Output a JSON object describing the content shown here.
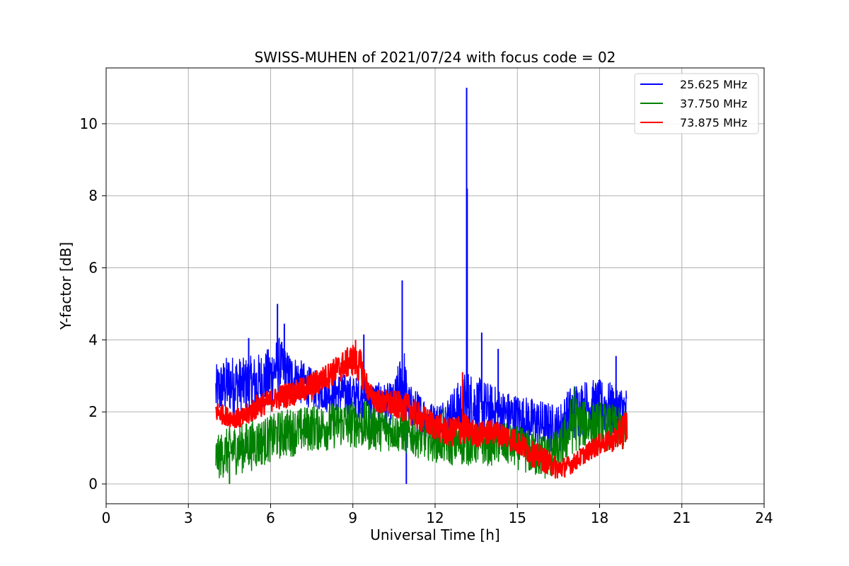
{
  "chart_data": {
    "type": "line",
    "title": "SWISS-MUHEN of 2021/07/24 with focus code = 02",
    "xlabel": "Universal Time [h]",
    "ylabel": "Y-factor [dB]",
    "xlim": [
      0,
      24
    ],
    "ylim": [
      -0.55,
      11.55
    ],
    "xticks": [
      0,
      3,
      6,
      9,
      12,
      15,
      18,
      21,
      24
    ],
    "yticks": [
      0,
      2,
      4,
      6,
      8,
      10
    ],
    "grid": true,
    "legend_position": "top-right",
    "series": [
      {
        "name": "25.625 MHz",
        "color": "#0000ff",
        "x": [
          4.0,
          4.5,
          5.0,
          5.5,
          6.0,
          6.3,
          6.6,
          7.0,
          7.5,
          8.0,
          8.5,
          9.0,
          9.5,
          10.0,
          10.5,
          10.85,
          11.0,
          11.5,
          12.0,
          12.5,
          13.0,
          13.15,
          13.5,
          14.0,
          14.5,
          15.0,
          15.5,
          16.0,
          16.5,
          17.0,
          17.5,
          18.0,
          18.5,
          19.0
        ],
        "low": [
          1.7,
          1.9,
          1.9,
          1.8,
          2.1,
          2.5,
          2.3,
          2.2,
          2.1,
          2.0,
          1.9,
          1.8,
          1.8,
          1.7,
          1.6,
          1.5,
          1.5,
          1.3,
          1.2,
          1.2,
          1.2,
          1.2,
          1.2,
          1.2,
          1.2,
          1.1,
          1.0,
          0.9,
          0.8,
          1.2,
          1.3,
          1.3,
          1.3,
          1.2
        ],
        "high": [
          3.3,
          3.6,
          3.5,
          3.6,
          3.8,
          4.1,
          3.7,
          3.5,
          3.2,
          3.0,
          3.1,
          3.0,
          2.9,
          2.8,
          2.8,
          4.0,
          2.8,
          2.5,
          2.2,
          2.5,
          3.0,
          3.2,
          3.0,
          2.8,
          2.6,
          2.5,
          2.4,
          2.3,
          2.2,
          2.8,
          2.9,
          2.9,
          2.8,
          2.7
        ],
        "spikes": [
          [
            5.2,
            4.05
          ],
          [
            6.25,
            5.0
          ],
          [
            6.5,
            4.45
          ],
          [
            9.4,
            4.15
          ],
          [
            10.8,
            5.65
          ],
          [
            10.95,
            0.0
          ],
          [
            13.15,
            11.0
          ],
          [
            13.17,
            8.2
          ],
          [
            13.7,
            4.2
          ],
          [
            14.3,
            3.75
          ],
          [
            18.6,
            3.55
          ]
        ]
      },
      {
        "name": "37.750 MHz",
        "color": "#008000",
        "x": [
          4.0,
          4.5,
          5.0,
          5.5,
          6.0,
          6.5,
          7.0,
          7.5,
          8.0,
          8.5,
          9.0,
          9.5,
          10.0,
          10.5,
          11.0,
          11.5,
          12.0,
          12.5,
          13.0,
          13.5,
          14.0,
          14.5,
          15.0,
          15.5,
          16.0,
          16.5,
          17.0,
          17.5,
          18.0,
          18.5,
          19.0
        ],
        "low": [
          0.1,
          0.2,
          0.3,
          0.4,
          0.6,
          0.7,
          0.8,
          0.9,
          0.9,
          1.0,
          1.0,
          0.9,
          0.9,
          0.9,
          0.8,
          0.7,
          0.6,
          0.5,
          0.5,
          0.5,
          0.5,
          0.5,
          0.4,
          0.2,
          0.1,
          0.2,
          0.8,
          1.0,
          0.9,
          0.9,
          0.9
        ],
        "high": [
          1.3,
          1.6,
          1.7,
          1.8,
          1.9,
          2.1,
          2.1,
          2.2,
          2.2,
          2.3,
          2.3,
          2.3,
          2.2,
          2.0,
          1.9,
          1.8,
          1.8,
          1.7,
          1.7,
          1.7,
          1.7,
          1.7,
          1.6,
          1.5,
          1.4,
          1.5,
          2.5,
          2.3,
          2.3,
          2.2,
          2.0
        ],
        "spikes": [
          [
            4.5,
            0.0
          ],
          [
            12.3,
            2.1
          ],
          [
            17.1,
            2.7
          ]
        ]
      },
      {
        "name": "73.875 MHz",
        "color": "#ff0000",
        "x": [
          4.0,
          4.5,
          5.0,
          5.5,
          6.0,
          6.5,
          7.0,
          7.5,
          8.0,
          8.5,
          9.0,
          9.3,
          9.6,
          10.0,
          10.5,
          11.0,
          11.5,
          12.0,
          12.5,
          13.0,
          13.5,
          14.0,
          14.5,
          15.0,
          15.5,
          16.0,
          16.5,
          17.0,
          17.5,
          18.0,
          18.5,
          19.0
        ],
        "low": [
          1.7,
          1.6,
          1.5,
          1.8,
          2.0,
          2.1,
          2.2,
          2.3,
          2.6,
          2.8,
          3.0,
          2.7,
          2.2,
          1.9,
          1.8,
          1.7,
          1.4,
          1.2,
          1.0,
          1.1,
          1.0,
          1.1,
          1.0,
          0.8,
          0.5,
          0.3,
          0.1,
          0.3,
          0.6,
          0.8,
          0.9,
          1.0
        ],
        "high": [
          2.3,
          2.1,
          2.1,
          2.5,
          2.6,
          2.8,
          2.9,
          3.1,
          3.3,
          3.6,
          3.9,
          3.7,
          2.8,
          2.6,
          2.6,
          2.5,
          2.2,
          2.0,
          1.8,
          2.0,
          1.7,
          1.8,
          1.7,
          1.5,
          1.2,
          1.0,
          0.7,
          0.8,
          1.1,
          1.4,
          1.5,
          2.2
        ],
        "spikes": [
          [
            9.1,
            4.0
          ],
          [
            13.0,
            3.1
          ]
        ]
      }
    ]
  }
}
